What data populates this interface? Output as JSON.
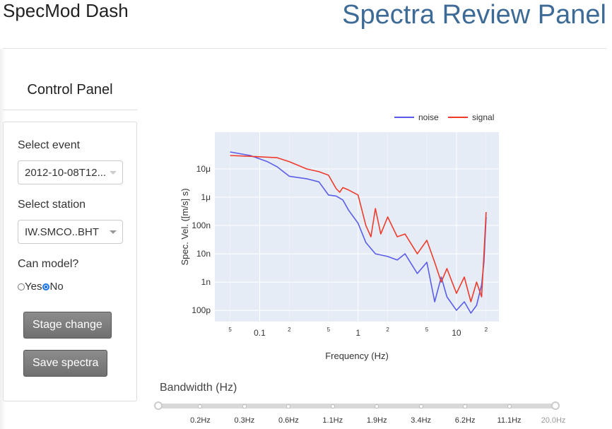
{
  "header": {
    "app_title": "SpecMod Dash",
    "main_title": "Spectra Review Panel"
  },
  "control_panel": {
    "heading": "Control Panel",
    "event_label": "Select event",
    "event_value": "2012-10-08T12...",
    "station_label": "Select station",
    "station_value": "IW.SMCO..BHT",
    "model_label": "Can model?",
    "model_options": [
      "Yes",
      "No"
    ],
    "model_selected": "No",
    "stage_button": "Stage change",
    "save_button": "Save spectra"
  },
  "colors": {
    "noise": "#5b5de8",
    "signal": "#ef3b2c",
    "plot_bg": "#e5ecf6",
    "title": "#3d6b96"
  },
  "chart_data": {
    "type": "line",
    "xlabel": "Frequency (Hz)",
    "ylabel": "Spec. Vel. ([m/s] s)",
    "x_scale": "log",
    "y_scale": "log",
    "xlim": [
      0.035,
      27
    ],
    "ylim": [
      4e-11,
      0.0002
    ],
    "x_major_ticks": [
      {
        "v": 0.1,
        "label": "0.1"
      },
      {
        "v": 1,
        "label": "1"
      },
      {
        "v": 10,
        "label": "10"
      }
    ],
    "x_minor_ticks": [
      {
        "v": 0.05,
        "label": "5"
      },
      {
        "v": 0.2,
        "label": "2"
      },
      {
        "v": 0.5,
        "label": "5"
      },
      {
        "v": 2,
        "label": "2"
      },
      {
        "v": 5,
        "label": "5"
      },
      {
        "v": 20,
        "label": "2"
      }
    ],
    "y_ticks": [
      {
        "v": 1e-05,
        "label": "10μ"
      },
      {
        "v": 1e-06,
        "label": "1μ"
      },
      {
        "v": 1e-07,
        "label": "100n"
      },
      {
        "v": 1e-08,
        "label": "10n"
      },
      {
        "v": 1e-09,
        "label": "1n"
      },
      {
        "v": 1e-10,
        "label": "100p"
      }
    ],
    "legend_position": "top-right",
    "series": [
      {
        "name": "noise",
        "x": [
          0.05,
          0.08,
          0.12,
          0.15,
          0.2,
          0.3,
          0.4,
          0.5,
          0.6,
          0.7,
          0.8,
          1.0,
          1.2,
          1.5,
          2.0,
          2.5,
          3.0,
          4.0,
          5.0,
          6.0,
          7.0,
          8.0,
          10.0,
          12.0,
          14.0,
          16.0,
          18.0,
          19.0,
          20.0
        ],
        "y": [
          4e-05,
          3e-05,
          1.8e-05,
          1.2e-05,
          5.5e-06,
          4.5e-06,
          3.5e-06,
          1.2e-06,
          1.1e-06,
          8e-07,
          3.5e-07,
          1.2e-07,
          2.5e-08,
          1e-08,
          8e-09,
          6e-09,
          1e-08,
          2e-09,
          5e-09,
          2e-10,
          1.5e-09,
          3e-10,
          1e-10,
          2e-10,
          8e-11,
          1.5e-10,
          8e-10,
          5e-09,
          2e-07
        ]
      },
      {
        "name": "signal",
        "x": [
          0.05,
          0.08,
          0.12,
          0.15,
          0.2,
          0.3,
          0.4,
          0.5,
          0.6,
          0.65,
          0.7,
          0.8,
          1.0,
          1.2,
          1.35,
          1.5,
          1.7,
          2.0,
          2.5,
          3.0,
          4.0,
          5.0,
          6.0,
          7.0,
          8.0,
          10.0,
          12.0,
          14.0,
          16.0,
          18.0,
          19.0,
          20.0
        ],
        "y": [
          3e-05,
          2.8e-05,
          2.6e-05,
          2.5e-05,
          1.8e-05,
          1e-05,
          8e-06,
          6e-06,
          2e-06,
          1.5e-06,
          2.2e-06,
          1.8e-06,
          1.2e-06,
          1e-07,
          4e-08,
          4e-07,
          5e-08,
          2e-07,
          4e-08,
          5e-08,
          1e-08,
          3e-08,
          5e-09,
          1e-09,
          3e-09,
          4e-10,
          1.5e-09,
          2e-10,
          1e-09,
          3e-10,
          1e-08,
          3e-07
        ]
      }
    ]
  },
  "bandwidth": {
    "label": "Bandwidth (Hz)",
    "marks": [
      "0.2Hz",
      "0.3Hz",
      "0.6Hz",
      "1.1Hz",
      "1.9Hz",
      "3.4Hz",
      "6.2Hz",
      "11.1Hz",
      "20.0Hz"
    ],
    "range_start_fraction": 0,
    "range_end_fraction": 1
  }
}
